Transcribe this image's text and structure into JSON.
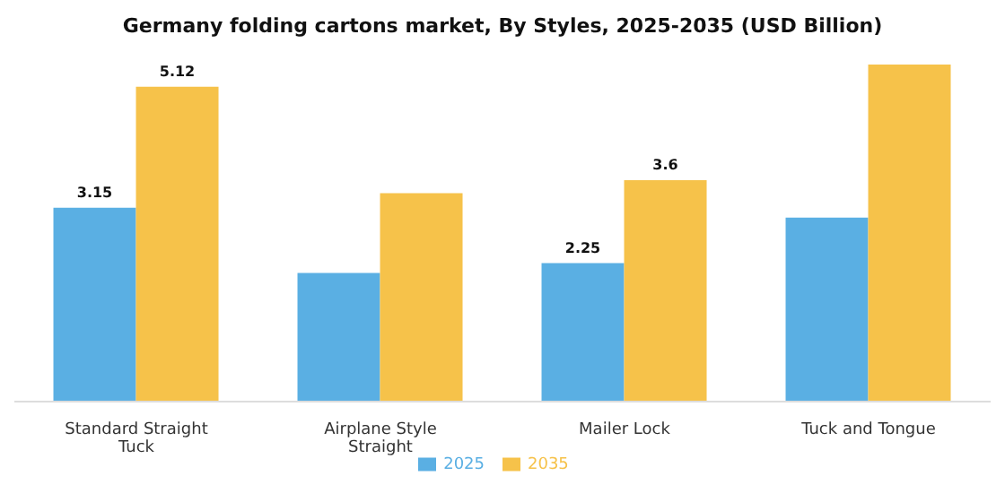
{
  "chart_data": {
    "type": "bar",
    "title": "Germany folding cartons market, By Styles, 2025-2035 (USD Billion)",
    "categories": [
      "Standard Straight Tuck",
      "Airplane Style Straight",
      "Mailer Lock",
      "Tuck and Tongue"
    ],
    "series": [
      {
        "name": "2025",
        "color": "#5aafe3",
        "values": [
          3.15,
          2.09,
          2.25,
          2.99
        ],
        "value_labels": [
          "3.15",
          null,
          "2.25",
          null
        ]
      },
      {
        "name": "2035",
        "color": "#f6c24a",
        "values": [
          5.12,
          3.39,
          3.6,
          5.48
        ],
        "value_labels": [
          "5.12",
          null,
          "3.6",
          null
        ]
      }
    ],
    "legend": "bottom",
    "grid": false
  }
}
